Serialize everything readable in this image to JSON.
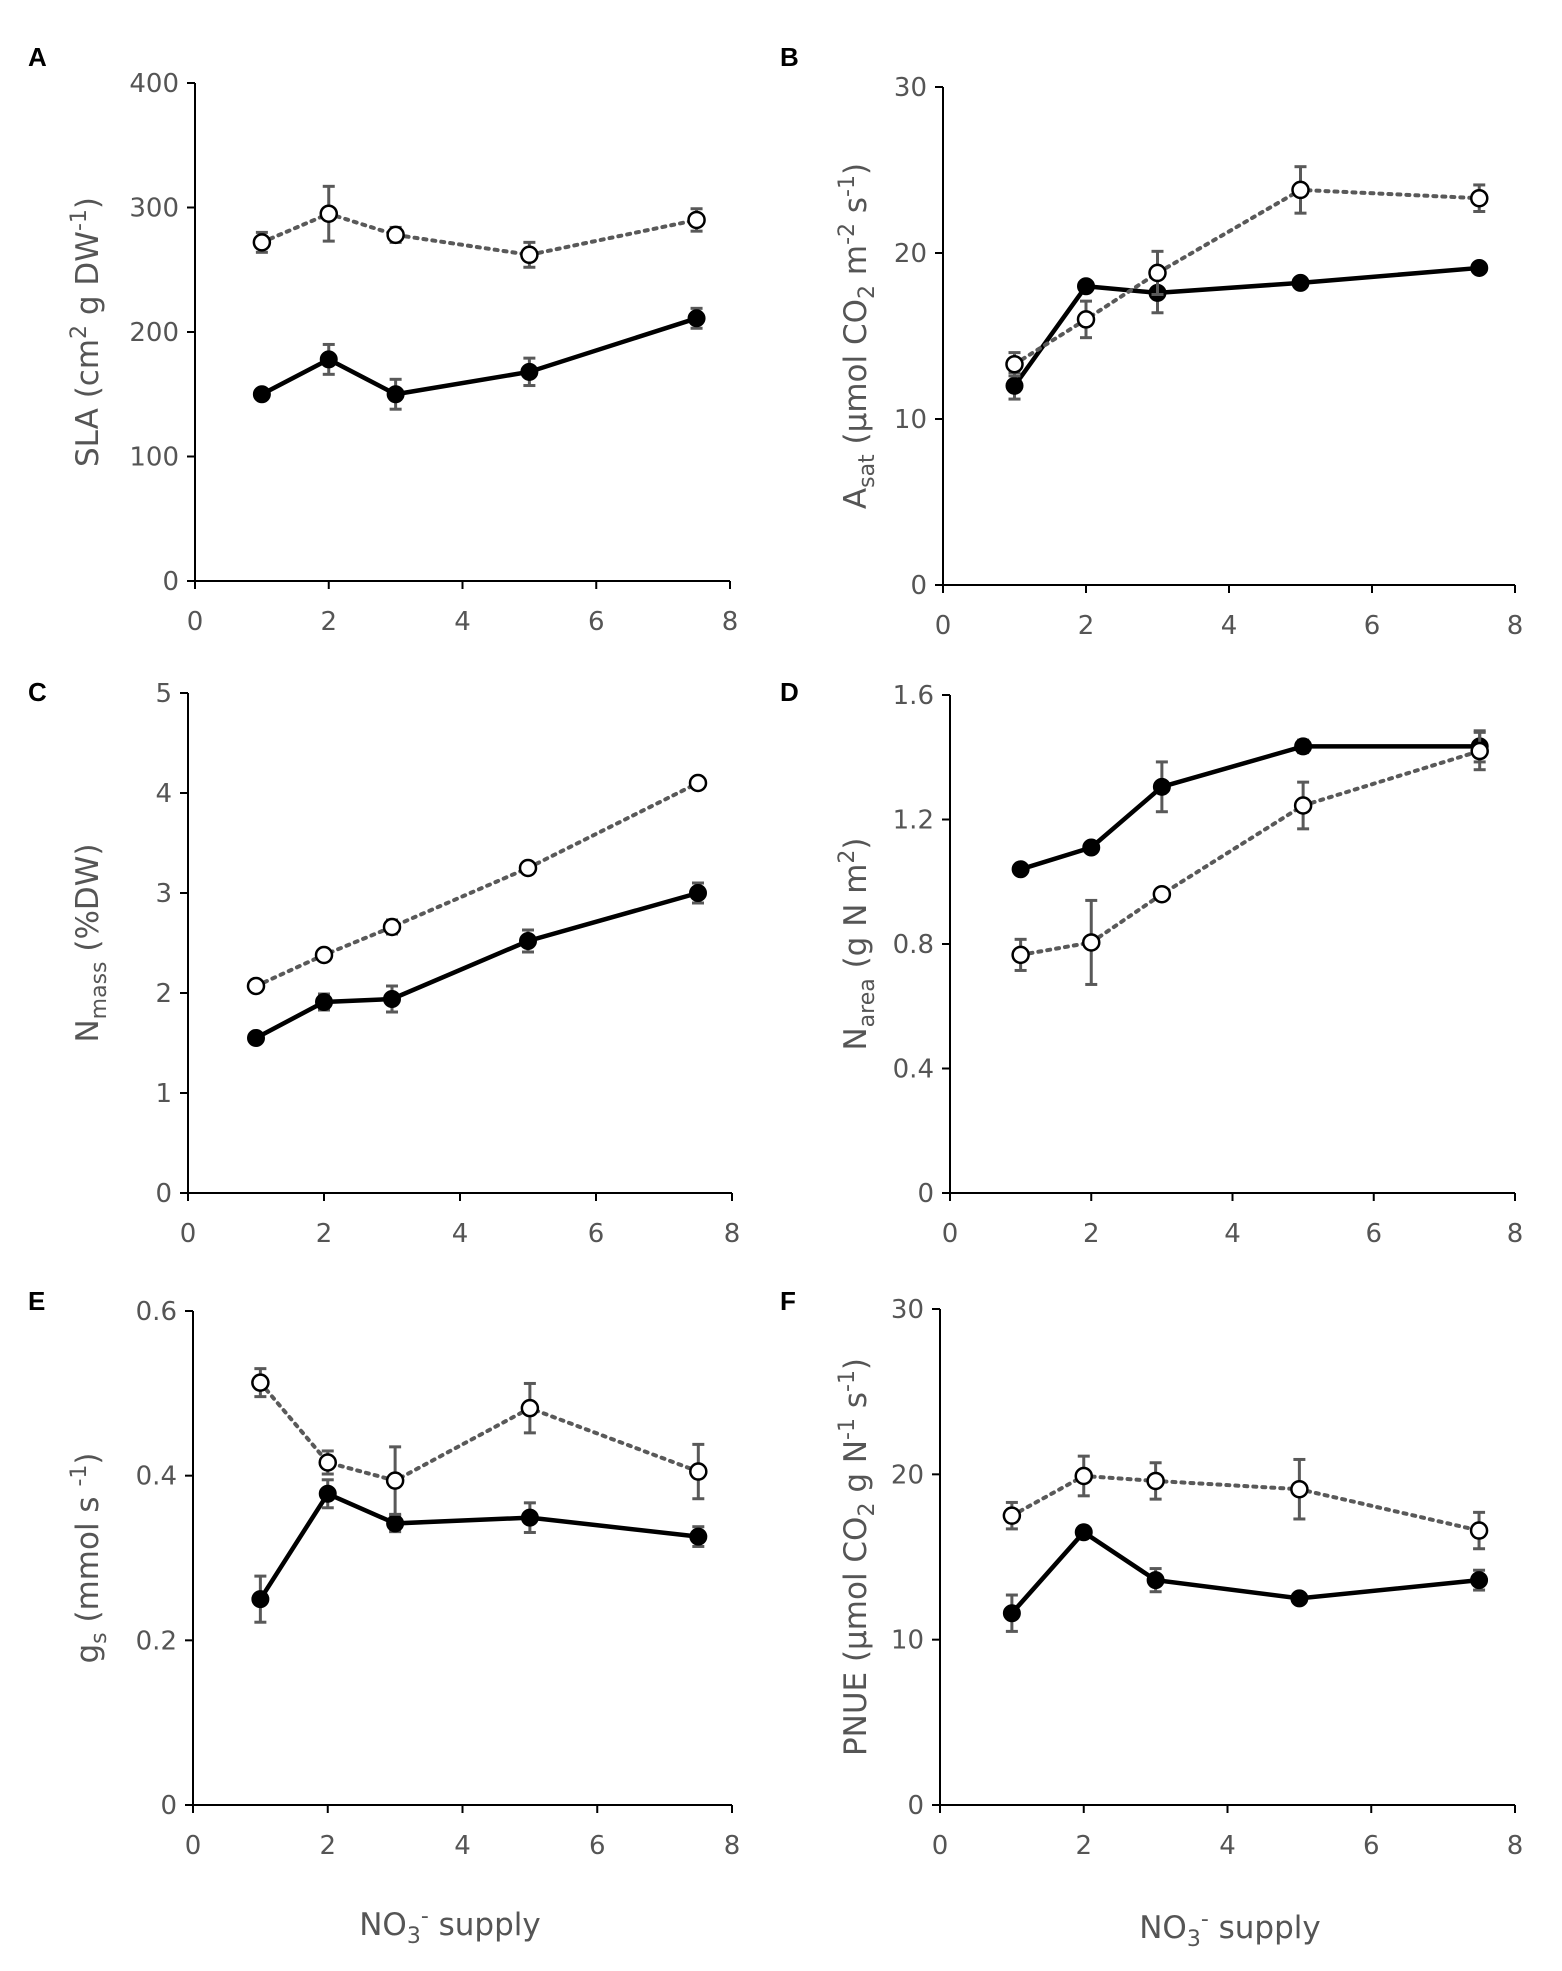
{
  "figure": {
    "panels": [
      "A",
      "B",
      "C",
      "D",
      "E",
      "F"
    ],
    "x_axis_title": {
      "base": "NO",
      "sub": "3",
      "sup": "-",
      "suffix": " supply"
    }
  },
  "chart_data": [
    {
      "panel": "A",
      "type": "line",
      "ylabel": {
        "base": "SLA (cm",
        "sup1": "2",
        "mid": " g DW",
        "sup2": "-1",
        "end": ")"
      },
      "ylim": [
        0,
        400
      ],
      "yticks": [
        0,
        100,
        200,
        300,
        400
      ],
      "ytick_labels": [
        "0",
        "100",
        "200",
        "300",
        "400"
      ],
      "xlim": [
        0,
        8
      ],
      "xticks": [
        0,
        2,
        4,
        6,
        8
      ],
      "xtick_labels": [
        "0",
        "2",
        "4",
        "6",
        "8"
      ],
      "x": [
        1,
        2,
        3,
        5,
        7.5
      ],
      "series": [
        {
          "marker": "filled",
          "line": "solid",
          "values": [
            150,
            178,
            150,
            168,
            211
          ],
          "errors": [
            4,
            12,
            12,
            11,
            8
          ]
        },
        {
          "marker": "open",
          "line": "dotted",
          "values": [
            272,
            295,
            278,
            262,
            290
          ],
          "errors": [
            8,
            22,
            6,
            10,
            9
          ]
        }
      ]
    },
    {
      "panel": "B",
      "type": "line",
      "ylabel": {
        "base": "A",
        "sub": "sat",
        "mid": " (µmol CO",
        "sub2": "2",
        "mid2": " m",
        "sup1": "-2",
        "mid3": " s",
        "sup2": "-1",
        "end": ")"
      },
      "ylim": [
        0,
        30
      ],
      "yticks": [
        0,
        10,
        20,
        30
      ],
      "ytick_labels": [
        "0",
        "10",
        "20",
        "30"
      ],
      "xlim": [
        0,
        8
      ],
      "xticks": [
        0,
        2,
        4,
        6,
        8
      ],
      "xtick_labels": [
        "0",
        "2",
        "4",
        "6",
        "8"
      ],
      "x": [
        1,
        2,
        3,
        5,
        7.5
      ],
      "series": [
        {
          "marker": "filled",
          "line": "solid",
          "values": [
            12.0,
            18.0,
            17.6,
            18.2,
            19.1
          ],
          "errors": [
            0.8,
            0.3,
            1.2,
            0.3,
            0.3
          ]
        },
        {
          "marker": "open",
          "line": "dotted",
          "values": [
            13.3,
            16.0,
            18.8,
            23.8,
            23.3
          ],
          "errors": [
            0.7,
            1.1,
            1.3,
            1.4,
            0.8
          ]
        }
      ]
    },
    {
      "panel": "C",
      "type": "line",
      "ylabel": {
        "base": "N",
        "sub": "mass",
        "end": " (%DW)"
      },
      "ylim": [
        0,
        5
      ],
      "yticks": [
        0,
        1,
        2,
        3,
        4,
        5
      ],
      "ytick_labels": [
        "0",
        "1",
        "2",
        "3",
        "4",
        "5"
      ],
      "xlim": [
        0,
        8
      ],
      "xticks": [
        0,
        2,
        4,
        6,
        8
      ],
      "xtick_labels": [
        "0",
        "2",
        "4",
        "6",
        "8"
      ],
      "x": [
        1,
        2,
        3,
        5,
        7.5
      ],
      "series": [
        {
          "marker": "filled",
          "line": "solid",
          "values": [
            1.55,
            1.91,
            1.94,
            2.52,
            3.0
          ],
          "errors": [
            0.04,
            0.08,
            0.13,
            0.11,
            0.1
          ]
        },
        {
          "marker": "open",
          "line": "dotted",
          "values": [
            2.07,
            2.38,
            2.66,
            3.25,
            4.1
          ],
          "errors": [
            0.04,
            0.04,
            0.07,
            0.04,
            0.04
          ]
        }
      ]
    },
    {
      "panel": "D",
      "type": "line",
      "ylabel": {
        "base": "N",
        "sub": "area",
        "mid": " (g N m",
        "sup1": "2",
        "end": ")"
      },
      "ylim": [
        0,
        1.6
      ],
      "yticks": [
        0,
        0.4,
        0.8,
        1.2,
        1.6
      ],
      "ytick_labels": [
        "0",
        "0.4",
        "0.8",
        "1.2",
        "1.6"
      ],
      "xlim": [
        0,
        8
      ],
      "xticks": [
        0,
        2,
        4,
        6,
        8
      ],
      "xtick_labels": [
        "0",
        "2",
        "4",
        "6",
        "8"
      ],
      "x": [
        1,
        2,
        3,
        5,
        7.5
      ],
      "series": [
        {
          "marker": "filled",
          "line": "solid",
          "values": [
            1.04,
            1.11,
            1.305,
            1.435,
            1.435
          ],
          "errors": [
            0.01,
            0.01,
            0.08,
            0.02,
            0.05
          ]
        },
        {
          "marker": "open",
          "line": "dotted",
          "values": [
            0.765,
            0.805,
            0.96,
            1.245,
            1.42
          ],
          "errors": [
            0.05,
            0.135,
            0.01,
            0.075,
            0.06
          ]
        }
      ]
    },
    {
      "panel": "E",
      "type": "line",
      "ylabel": {
        "base": "g",
        "sub": "s",
        "mid": " (mmol s ",
        "sup1": "-1",
        "end": ")"
      },
      "ylim": [
        0,
        0.6
      ],
      "yticks": [
        0,
        0.2,
        0.4,
        0.6
      ],
      "ytick_labels": [
        "0",
        "0.2",
        "0.4",
        "0.6"
      ],
      "xlim": [
        0,
        8
      ],
      "xticks": [
        0,
        2,
        4,
        6,
        8
      ],
      "xtick_labels": [
        "0",
        "2",
        "4",
        "6",
        "8"
      ],
      "x": [
        1,
        2,
        3,
        5,
        7.5
      ],
      "series": [
        {
          "marker": "filled",
          "line": "solid",
          "values": [
            0.25,
            0.378,
            0.342,
            0.349,
            0.326
          ],
          "errors": [
            0.028,
            0.017,
            0.01,
            0.018,
            0.012
          ]
        },
        {
          "marker": "open",
          "line": "dotted",
          "values": [
            0.513,
            0.416,
            0.394,
            0.482,
            0.405
          ],
          "errors": [
            0.017,
            0.014,
            0.041,
            0.03,
            0.033
          ]
        }
      ]
    },
    {
      "panel": "F",
      "type": "line",
      "ylabel": {
        "base": "PNUE (µmol CO",
        "sub": "2",
        "mid": " g N",
        "sup1": "-1",
        "mid2": " s",
        "sup2": "-1",
        "end": ")"
      },
      "ylim": [
        0,
        30
      ],
      "yticks": [
        0,
        10,
        20,
        30
      ],
      "ytick_labels": [
        "0",
        "10",
        "20",
        "30"
      ],
      "xlim": [
        0,
        8
      ],
      "xticks": [
        0,
        2,
        4,
        6,
        8
      ],
      "xtick_labels": [
        "0",
        "2",
        "4",
        "6",
        "8"
      ],
      "x": [
        1,
        2,
        3,
        5,
        7.5
      ],
      "series": [
        {
          "marker": "filled",
          "line": "solid",
          "values": [
            11.6,
            16.5,
            13.6,
            12.5,
            13.6
          ],
          "errors": [
            1.1,
            0.3,
            0.7,
            0.3,
            0.6
          ]
        },
        {
          "marker": "open",
          "line": "dotted",
          "values": [
            17.5,
            19.9,
            19.6,
            19.1,
            16.6
          ],
          "errors": [
            0.8,
            1.2,
            1.1,
            1.8,
            1.1
          ]
        }
      ]
    }
  ]
}
